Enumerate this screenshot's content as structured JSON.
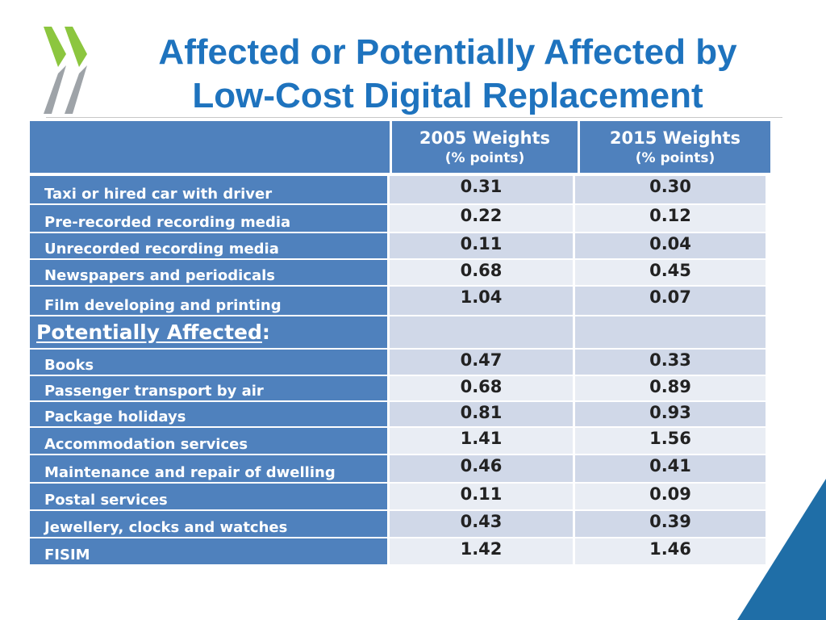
{
  "title": {
    "line1": "Affected or Potentially Affected by",
    "line2": "Low-Cost Digital Replacement"
  },
  "colors": {
    "title": "#1e73be",
    "header_fill": "#4f81bd",
    "value_fill": "#d0d8e8",
    "value_fill_alt": "#e9edf4",
    "logo_green": "#8cc63f",
    "logo_grey": "#9ea3a8",
    "corner": "#1f6ea7"
  },
  "logo": {
    "icon": "oecd-chevrons-logo"
  },
  "table": {
    "columns": [
      {
        "label": "2005 Weights",
        "sub": "(% points)"
      },
      {
        "label": "2015 Weights",
        "sub": "(% points)"
      }
    ],
    "rows": [
      {
        "label": "Taxi or hired car with driver",
        "v2005": "0.31",
        "v2015": "0.30"
      },
      {
        "label": "Pre-recorded recording media",
        "v2005": "0.22",
        "v2015": "0.12"
      },
      {
        "label": "Unrecorded recording media",
        "v2005": "0.11",
        "v2015": "0.04"
      },
      {
        "label": "Newspapers and periodicals",
        "v2005": "0.68",
        "v2015": "0.45"
      },
      {
        "label": "Film developing and printing",
        "v2005": "1.04",
        "v2015": "0.07"
      },
      {
        "section": "Potentially Affected",
        "suffix": ":"
      },
      {
        "label": "Books",
        "v2005": "0.47",
        "v2015": "0.33"
      },
      {
        "label": "Passenger transport by air",
        "v2005": "0.68",
        "v2015": "0.89"
      },
      {
        "label": "Package holidays",
        "v2005": "0.81",
        "v2015": "0.93"
      },
      {
        "label": "Accommodation services",
        "v2005": "1.41",
        "v2015": "1.56"
      },
      {
        "label": "Maintenance and repair of dwelling",
        "v2005": "0.46",
        "v2015": "0.41"
      },
      {
        "label": "Postal services",
        "v2005": "0.11",
        "v2015": "0.09"
      },
      {
        "label": "Jewellery, clocks and watches",
        "v2005": "0.43",
        "v2015": "0.39"
      },
      {
        "label": "FISIM",
        "v2005": "1.42",
        "v2015": "1.46"
      }
    ]
  }
}
